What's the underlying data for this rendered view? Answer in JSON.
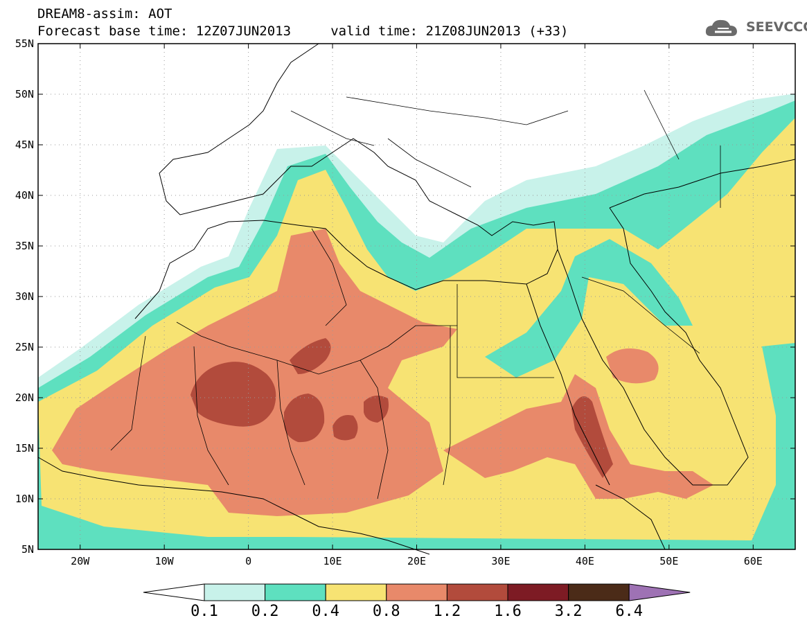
{
  "header": {
    "line1": "DREAM8-assim: AOT",
    "line2": "Forecast base time: 12Z07JUN2013     valid time: 21Z08JUN2013 (+33)"
  },
  "logo": {
    "text": "SEEVCCC",
    "color": "#666666"
  },
  "map": {
    "lon_range": [
      -25,
      65
    ],
    "lat_range": [
      5,
      55
    ],
    "lat_ticks": [
      "5N",
      "10N",
      "15N",
      "20N",
      "25N",
      "30N",
      "35N",
      "40N",
      "45N",
      "50N",
      "55N"
    ],
    "lon_ticks": [
      "20W",
      "10W",
      "0",
      "10E",
      "20E",
      "30E",
      "40E",
      "50E",
      "60E"
    ],
    "lat_tick_values": [
      5,
      10,
      15,
      20,
      25,
      30,
      35,
      40,
      45,
      50,
      55
    ],
    "lon_tick_values": [
      -20,
      -10,
      0,
      10,
      20,
      30,
      40,
      50,
      60
    ],
    "gridlines": "dotted"
  },
  "legend": {
    "labels": [
      "0.1",
      "0.2",
      "0.4",
      "0.8",
      "1.2",
      "1.6",
      "3.2",
      "6.4"
    ],
    "colors": [
      "#ffffff",
      "#c8f2ea",
      "#5ee0bf",
      "#f7e373",
      "#e8896a",
      "#b24b3c",
      "#7d1b24",
      "#4b2b18",
      "#9e72b4"
    ]
  }
}
